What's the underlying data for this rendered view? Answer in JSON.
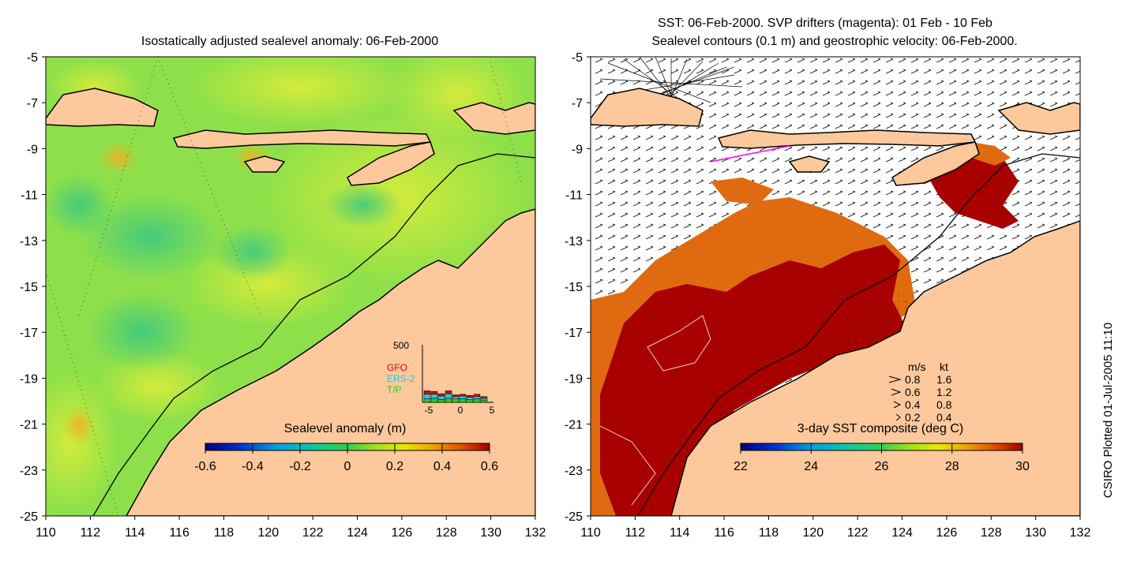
{
  "left_panel": {
    "title": "Isostatically adjusted sealevel anomaly: 06-Feb-2000",
    "lon_ticks": [
      "110",
      "112",
      "114",
      "116",
      "118",
      "120",
      "122",
      "124",
      "126",
      "128",
      "130",
      "132"
    ],
    "lat_ticks": [
      "-5",
      "-7",
      "-9",
      "-11",
      "-13",
      "-15",
      "-17",
      "-19",
      "-21",
      "-23",
      "-25"
    ],
    "colorbar": {
      "label": "Sealevel anomaly (m)",
      "ticks": [
        "-0.6",
        "-0.4",
        "-0.2",
        "0",
        "0.2",
        "0.4",
        "0.6"
      ],
      "colors": [
        "#00007a",
        "#0030d0",
        "#00a0e0",
        "#10c8a0",
        "#30d050",
        "#a0e020",
        "#e8e800",
        "#f0a000",
        "#e05000",
        "#a00000"
      ]
    },
    "inset": {
      "ymax_label": "500",
      "x_ticks": [
        "-5",
        "0",
        "5"
      ],
      "legend": [
        {
          "name": "GFO",
          "color": "#e00000"
        },
        {
          "name": "ERS-2",
          "color": "#20c8e8"
        },
        {
          "name": "T/P",
          "color": "#20d020"
        }
      ],
      "bars": [
        {
          "tp": 30,
          "ers": 40,
          "gfo": 30
        },
        {
          "tp": 35,
          "ers": 35,
          "gfo": 25
        },
        {
          "tp": 25,
          "ers": 30,
          "gfo": 20
        },
        {
          "tp": 35,
          "ers": 40,
          "gfo": 25
        },
        {
          "tp": 30,
          "ers": 20,
          "gfo": 15
        },
        {
          "tp": 30,
          "ers": 25,
          "gfo": 15
        },
        {
          "tp": 25,
          "ers": 20,
          "gfo": 15
        },
        {
          "tp": 30,
          "ers": 20,
          "gfo": 20
        },
        {
          "tp": 20,
          "ers": 15,
          "gfo": 15
        }
      ]
    }
  },
  "right_panel": {
    "title_line1": "SST: 06-Feb-2000. SVP drifters (magenta): 01 Feb - 10 Feb",
    "title_line2": "Sealevel contours (0.1 m) and geostrophic velocity: 06-Feb-2000.",
    "lon_ticks": [
      "110",
      "112",
      "114",
      "116",
      "118",
      "120",
      "122",
      "124",
      "126",
      "128",
      "130",
      "132"
    ],
    "lat_ticks": [
      "-5",
      "-7",
      "-9",
      "-11",
      "-13",
      "-15",
      "-17",
      "-19",
      "-21",
      "-23",
      "-25"
    ],
    "colorbar": {
      "label": "3-day SST composite (deg C)",
      "ticks": [
        "22",
        "24",
        "26",
        "28",
        "30"
      ],
      "colors": [
        "#00007a",
        "#0030d0",
        "#00a0e0",
        "#10c8a0",
        "#30d050",
        "#a0e020",
        "#e8e800",
        "#f0a000",
        "#e05000",
        "#a00000"
      ]
    },
    "velocity_legend": {
      "header_ms": "m/s",
      "header_kt": "kt",
      "rows": [
        {
          "ms": "0.8",
          "kt": "1.6"
        },
        {
          "ms": "0.6",
          "kt": "1.2"
        },
        {
          "ms": "0.4",
          "kt": "0.8"
        },
        {
          "ms": "0.2",
          "kt": "0.4"
        }
      ]
    }
  },
  "credit": "CSIRO Plotted 01-Jul-2005 11:10",
  "colors": {
    "land": "#fcc89c",
    "ocean_green": "#8ee04a",
    "ocean_yellow": "#d8ec3a",
    "sst_red": "#a80000",
    "sst_orange": "#e06a10",
    "cloud": "#ffffff"
  }
}
